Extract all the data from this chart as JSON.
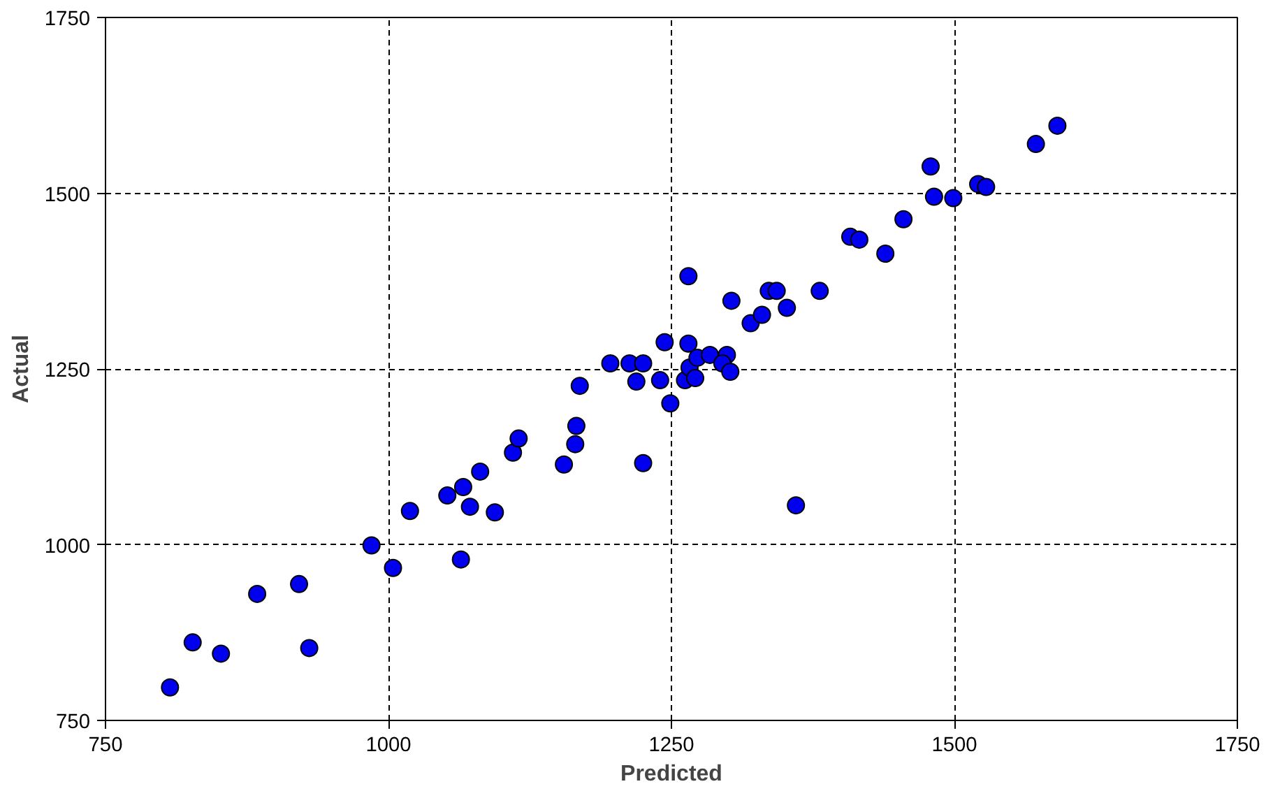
{
  "chart_data": {
    "type": "scatter",
    "xlabel": "Predicted",
    "ylabel": "Actual",
    "xlim": [
      750,
      1750
    ],
    "ylim": [
      750,
      1750
    ],
    "xticks": [
      750,
      1000,
      1250,
      1500,
      1750
    ],
    "yticks": [
      750,
      1000,
      1250,
      1500,
      1750
    ],
    "grid": true,
    "marker": "circle",
    "series": [
      {
        "color": "#0000ee",
        "x": [
          807,
          827,
          852,
          884,
          921,
          930,
          985,
          1004,
          1019,
          1064,
          1052,
          1066,
          1072,
          1081,
          1094,
          1110,
          1115,
          1155,
          1165,
          1166,
          1169,
          1196,
          1213,
          1219,
          1225,
          1225,
          1240,
          1244,
          1249,
          1265,
          1265,
          1262,
          1266,
          1273,
          1271,
          1284,
          1299,
          1295,
          1302,
          1303,
          1320,
          1330,
          1336,
          1343,
          1352,
          1360,
          1381,
          1408,
          1416,
          1439,
          1455,
          1479,
          1482,
          1499,
          1521,
          1528,
          1572,
          1591
        ],
        "values": [
          797,
          861,
          845,
          930,
          944,
          853,
          999,
          967,
          1048,
          979,
          1070,
          1082,
          1054,
          1104,
          1046,
          1131,
          1151,
          1114,
          1143,
          1169,
          1226,
          1258,
          1258,
          1232,
          1258,
          1116,
          1234,
          1288,
          1201,
          1382,
          1286,
          1234,
          1252,
          1266,
          1237,
          1270,
          1270,
          1258,
          1246,
          1347,
          1315,
          1327,
          1361,
          1361,
          1337,
          1056,
          1361,
          1438,
          1434,
          1414,
          1463,
          1538,
          1495,
          1493,
          1513,
          1509,
          1570,
          1596
        ]
      }
    ]
  }
}
